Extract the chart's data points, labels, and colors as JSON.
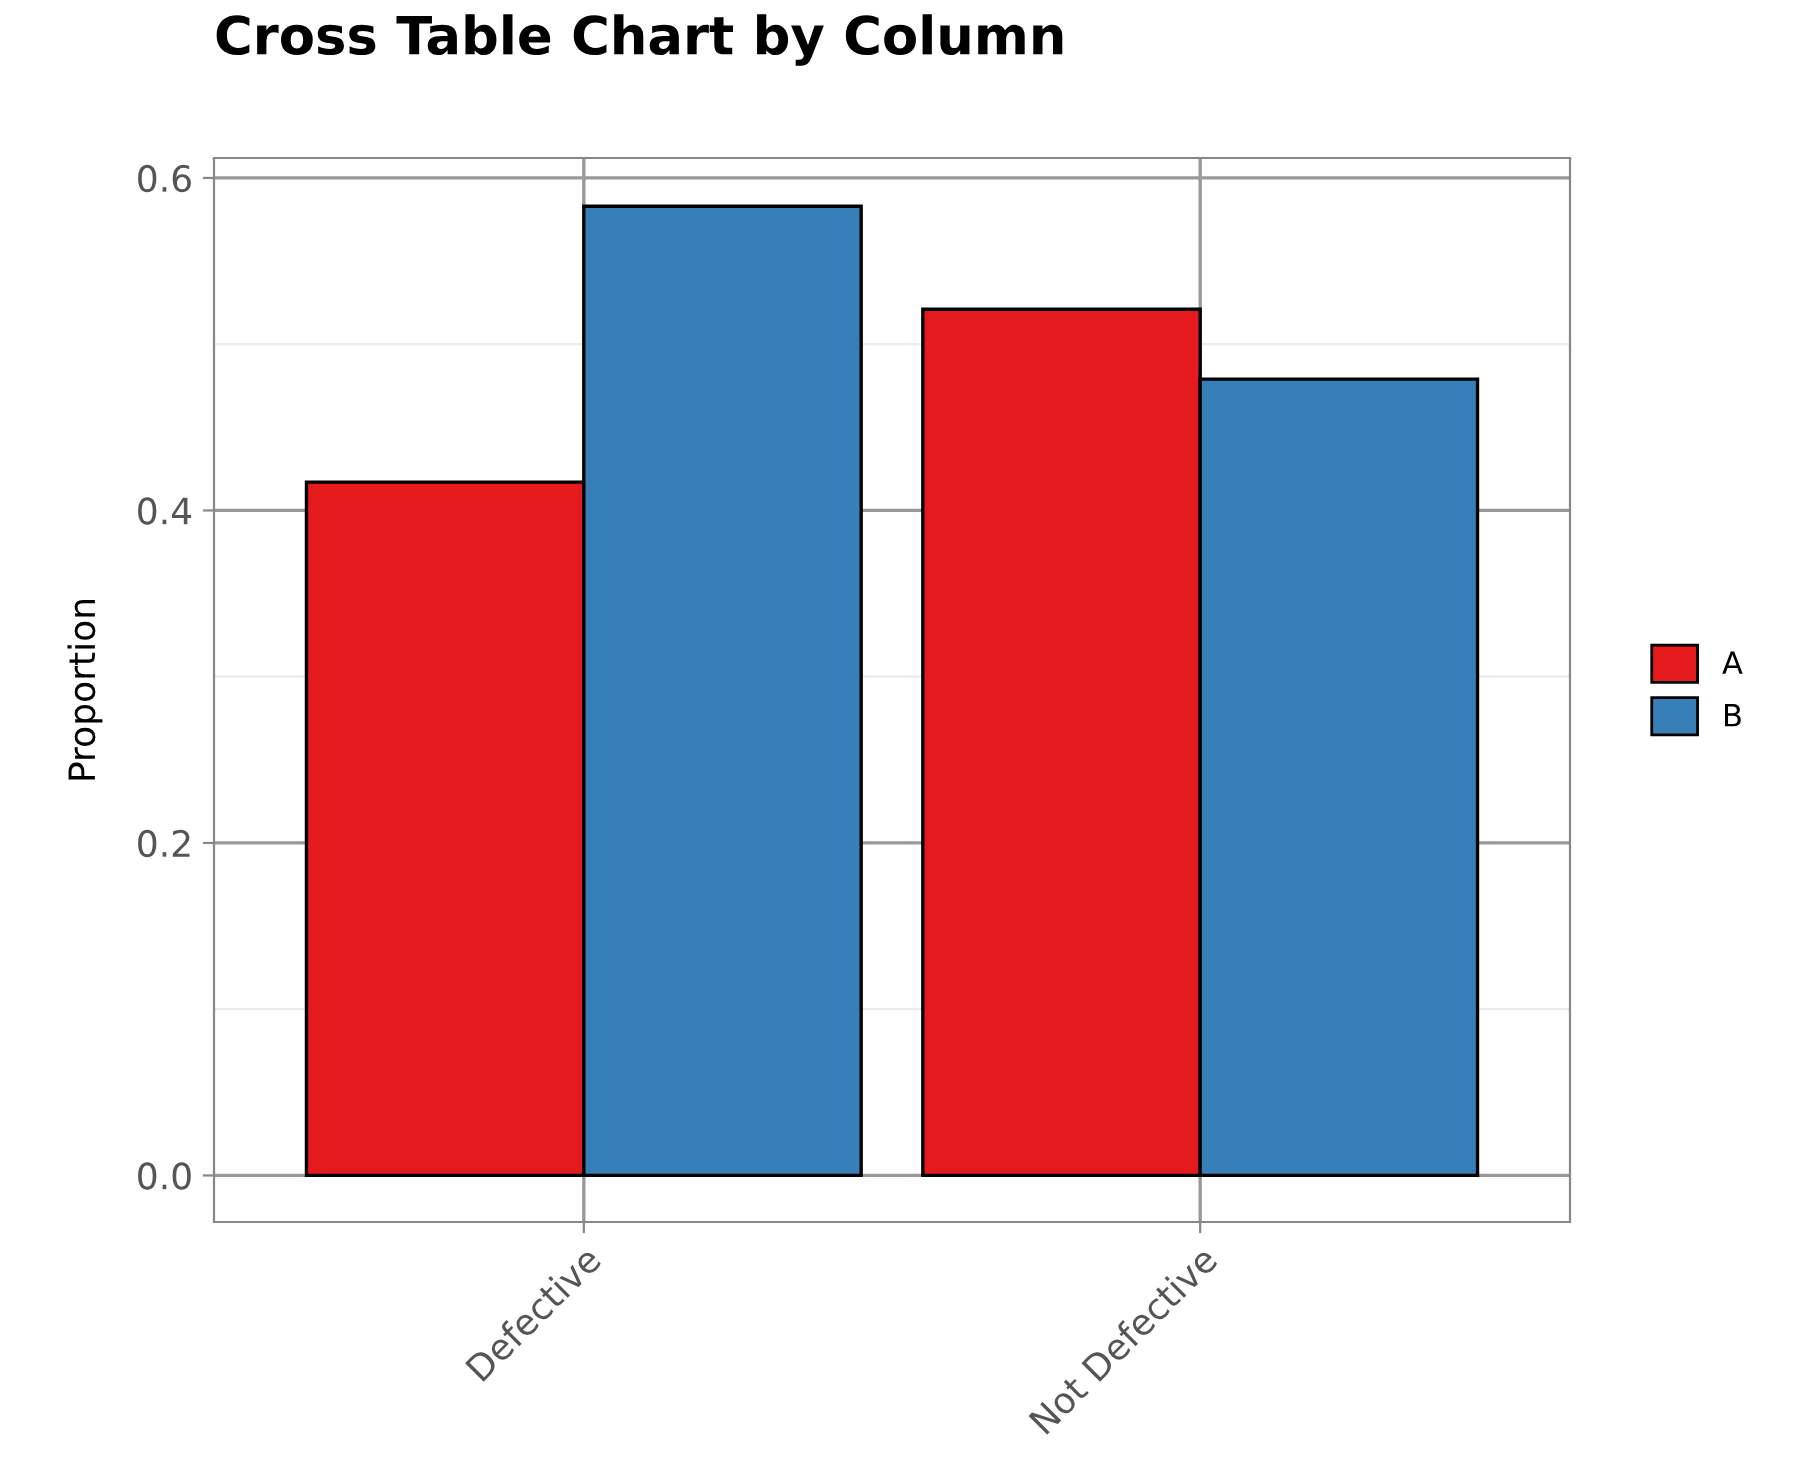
{
  "chart_data": {
    "type": "bar",
    "title": "Cross Table Chart by Column",
    "ylabel": "Proportion",
    "categories": [
      "Defective",
      "Not Defective"
    ],
    "series": [
      {
        "name": "A",
        "color": "#e41a1c",
        "values": [
          0.417,
          0.521
        ]
      },
      {
        "name": "B",
        "color": "#377eb8",
        "values": [
          0.583,
          0.479
        ]
      }
    ],
    "ylim": [
      -0.028,
      0.612
    ],
    "yticks": [
      {
        "value": 0,
        "label": "0.0"
      },
      {
        "value": 0.2,
        "label": "0.2"
      },
      {
        "value": 0.4,
        "label": "0.4"
      },
      {
        "value": 0.6,
        "label": "0.6"
      }
    ],
    "grid": true,
    "legend": "right"
  }
}
